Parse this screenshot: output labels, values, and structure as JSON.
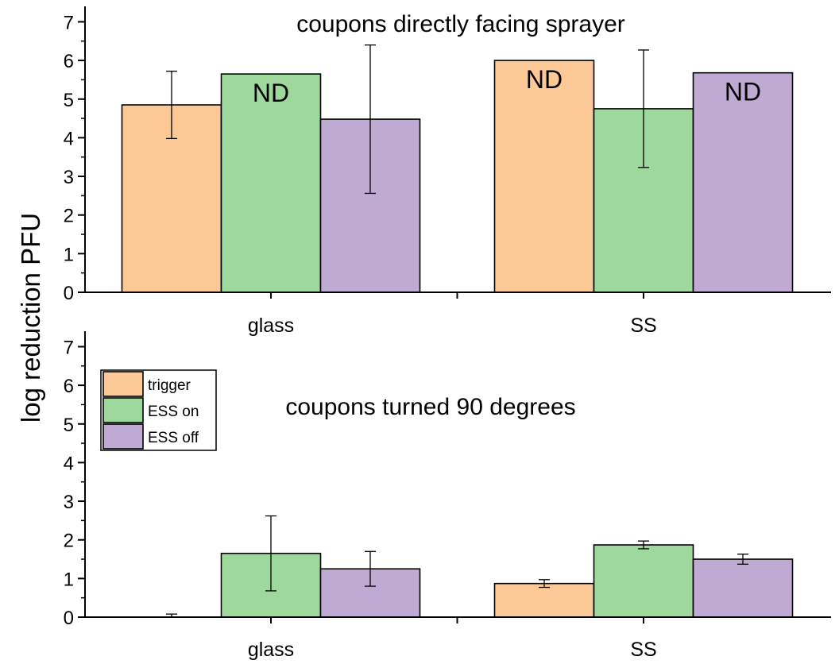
{
  "chart_data": [
    {
      "type": "bar",
      "title": "coupons directly facing sprayer",
      "ylabel": "log reduction PFU",
      "categories": [
        "glass",
        "SS"
      ],
      "ylim": [
        0,
        7.4
      ],
      "yticks": [
        0,
        1,
        2,
        3,
        4,
        5,
        6,
        7
      ],
      "series": [
        {
          "name": "trigger",
          "color": "#fcc896",
          "values": [
            4.85,
            6.0
          ],
          "errors": [
            0.87,
            null
          ],
          "labels": [
            "",
            "ND"
          ]
        },
        {
          "name": "ESS on",
          "color": "#9ed89c",
          "values": [
            5.65,
            4.75
          ],
          "errors": [
            null,
            1.52
          ],
          "labels": [
            "ND",
            ""
          ]
        },
        {
          "name": "ESS off",
          "color": "#bfaad4",
          "values": [
            4.48,
            5.68
          ],
          "errors": [
            1.92,
            null
          ],
          "labels": [
            "",
            "ND"
          ]
        }
      ],
      "legend": null
    },
    {
      "type": "bar",
      "title": "coupons turned 90 degrees",
      "ylabel": "log reduction PFU",
      "categories": [
        "glass",
        "SS"
      ],
      "ylim": [
        0,
        7.4
      ],
      "yticks": [
        0,
        1,
        2,
        3,
        4,
        5,
        6,
        7
      ],
      "series": [
        {
          "name": "trigger",
          "color": "#fcc896",
          "values": [
            0.0,
            0.87
          ],
          "errors": [
            0.08,
            0.1
          ],
          "labels": [
            "",
            ""
          ]
        },
        {
          "name": "ESS on",
          "color": "#9ed89c",
          "values": [
            1.65,
            1.87
          ],
          "errors": [
            0.97,
            0.1
          ],
          "labels": [
            "",
            ""
          ]
        },
        {
          "name": "ESS off",
          "color": "#bfaad4",
          "values": [
            1.25,
            1.5
          ],
          "errors": [
            0.45,
            0.13
          ],
          "labels": [
            "",
            ""
          ]
        }
      ],
      "legend": "upper-left"
    }
  ],
  "shared_ylabel": "log reduction PFU"
}
